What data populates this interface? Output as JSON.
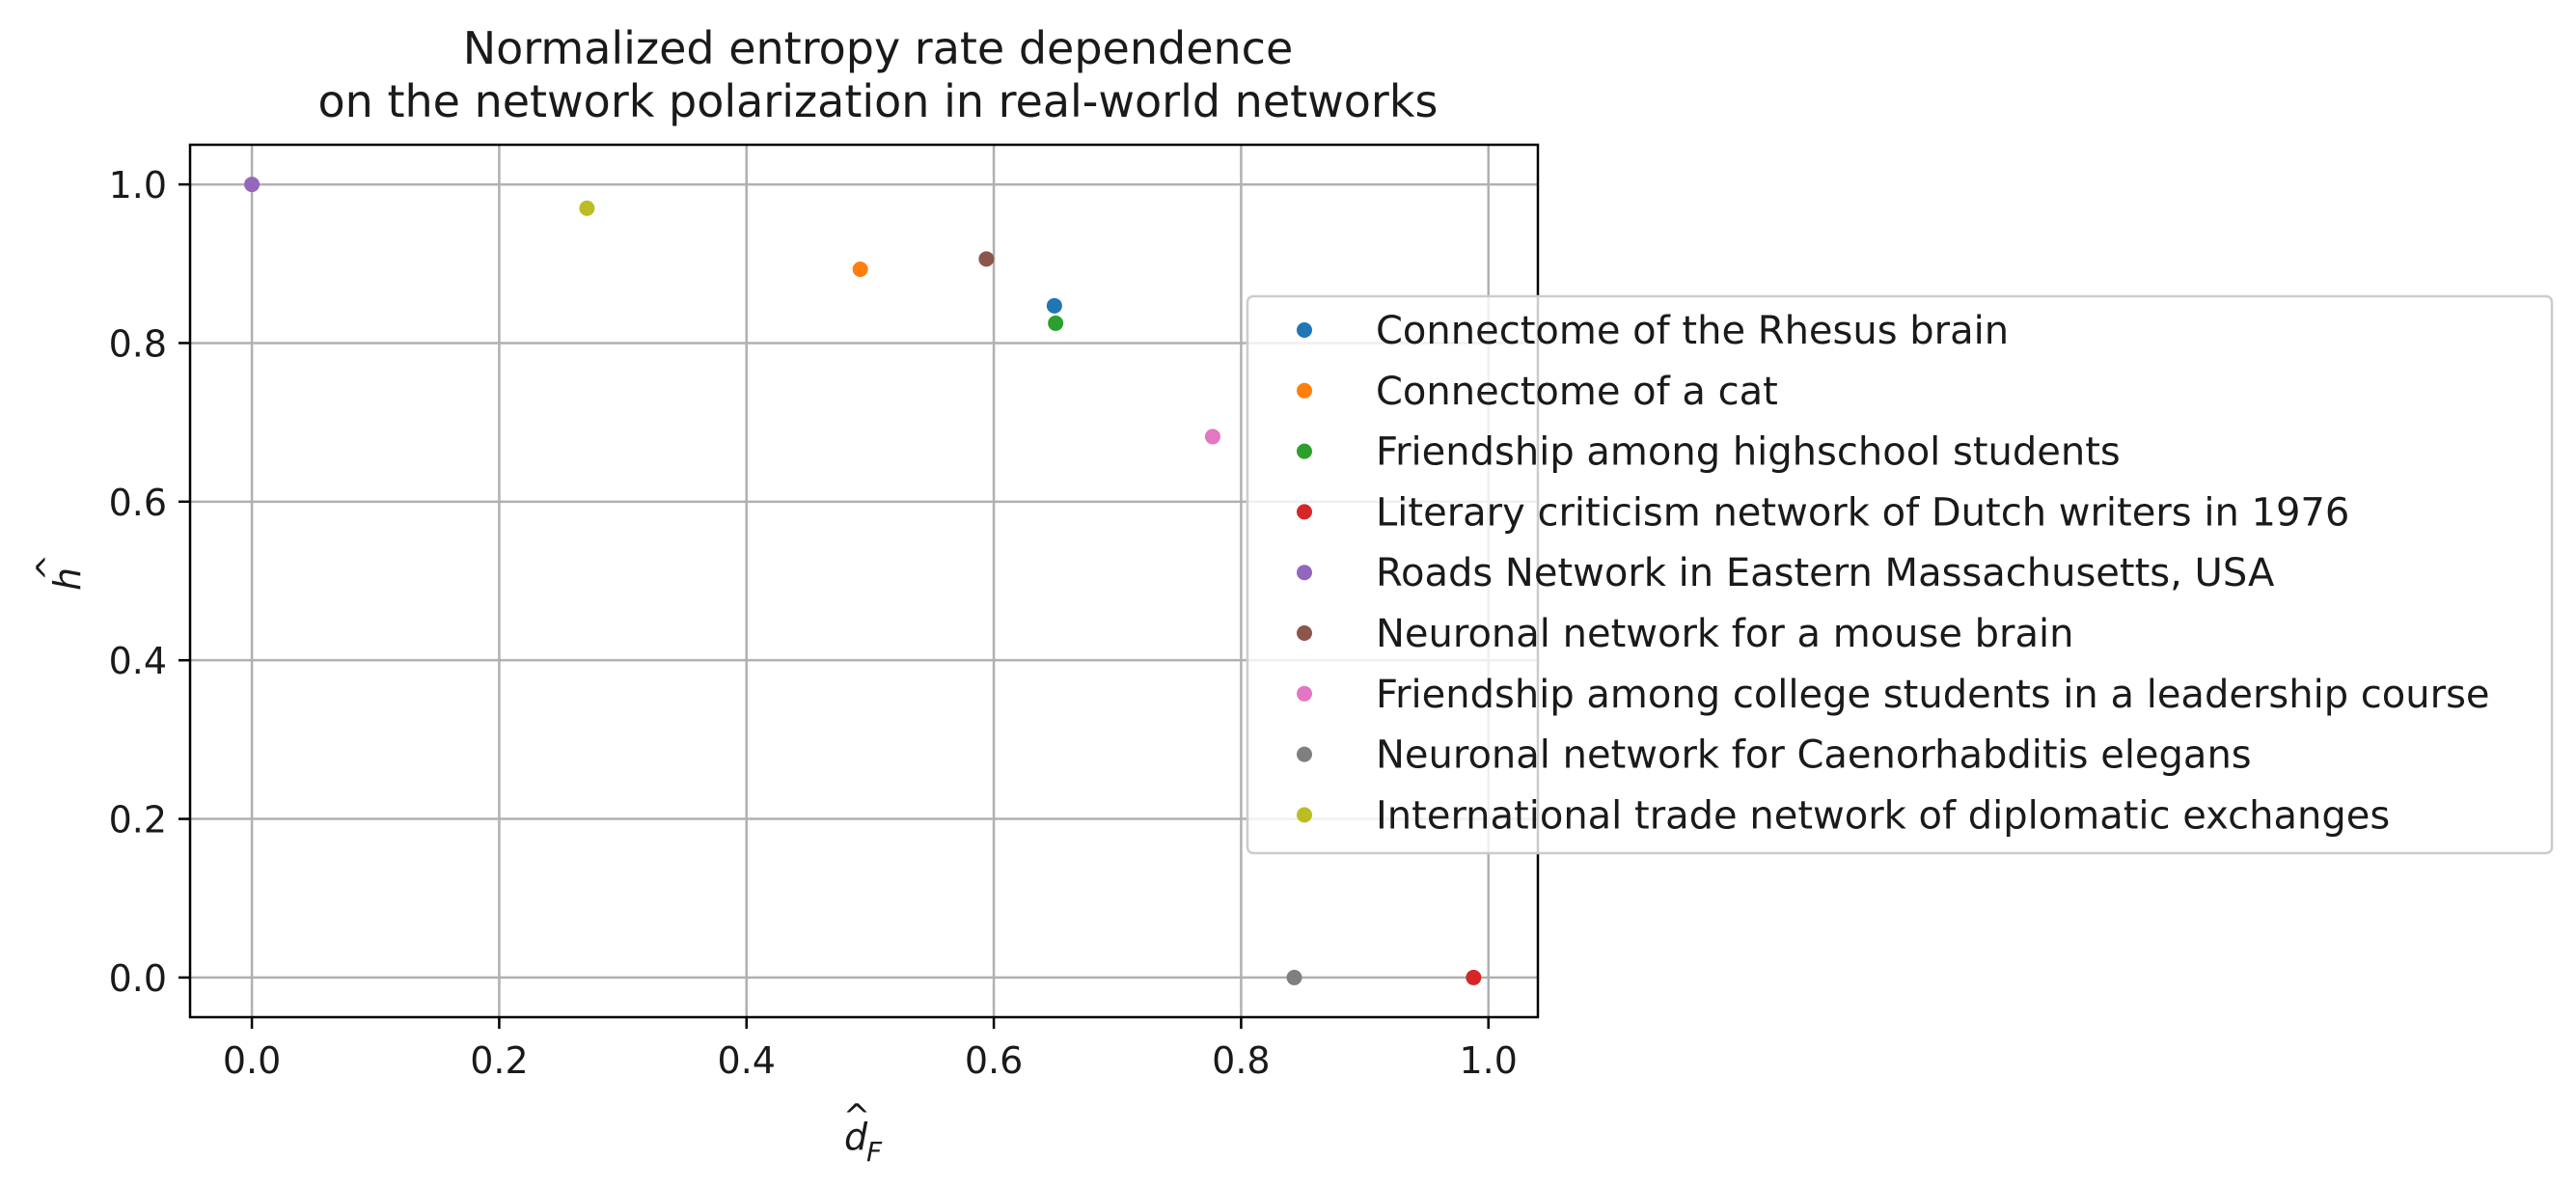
{
  "chart_data": {
    "type": "scatter",
    "title": [
      "Normalized entropy rate dependence",
      "on the network polarization in real-world networks"
    ],
    "xlabel": "d̂F",
    "ylabel": "ĥ",
    "xlim": [
      -0.05,
      1.04
    ],
    "ylim": [
      -0.05,
      1.05
    ],
    "xticks": [
      0.0,
      0.2,
      0.4,
      0.6,
      0.8,
      1.0
    ],
    "xtick_labels": [
      "0.0",
      "0.2",
      "0.4",
      "0.6",
      "0.8",
      "1.0"
    ],
    "yticks": [
      0.0,
      0.2,
      0.4,
      0.6,
      0.8,
      1.0
    ],
    "ytick_labels": [
      "0.0",
      "0.2",
      "0.4",
      "0.6",
      "0.8",
      "1.0"
    ],
    "grid": true,
    "legend_position": "right",
    "series": [
      {
        "name": "Connectome of the Rhesus brain",
        "color": "#1f77b4",
        "x": 0.649,
        "y": 0.847
      },
      {
        "name": "Connectome of a cat",
        "color": "#ff7f0e",
        "x": 0.492,
        "y": 0.893
      },
      {
        "name": "Friendship among highschool students",
        "color": "#2ca02c",
        "x": 0.65,
        "y": 0.825
      },
      {
        "name": "Literary criticism network of Dutch writers in 1976",
        "color": "#d62728",
        "x": 0.988,
        "y": 0.0
      },
      {
        "name": "Roads Network in Eastern Massachusetts, USA",
        "color": "#9467bd",
        "x": 0.0,
        "y": 1.0
      },
      {
        "name": "Neuronal network for a mouse brain",
        "color": "#8c564b",
        "x": 0.594,
        "y": 0.906
      },
      {
        "name": "Friendship among college students in a leadership course",
        "color": "#e377c2",
        "x": 0.777,
        "y": 0.682
      },
      {
        "name": "Neuronal network for Caenorhabditis elegans",
        "color": "#7f7f7f",
        "x": 0.843,
        "y": 0.0
      },
      {
        "name": "International trade network of diplomatic exchanges",
        "color": "#bcbd22",
        "x": 0.271,
        "y": 0.97
      }
    ]
  }
}
